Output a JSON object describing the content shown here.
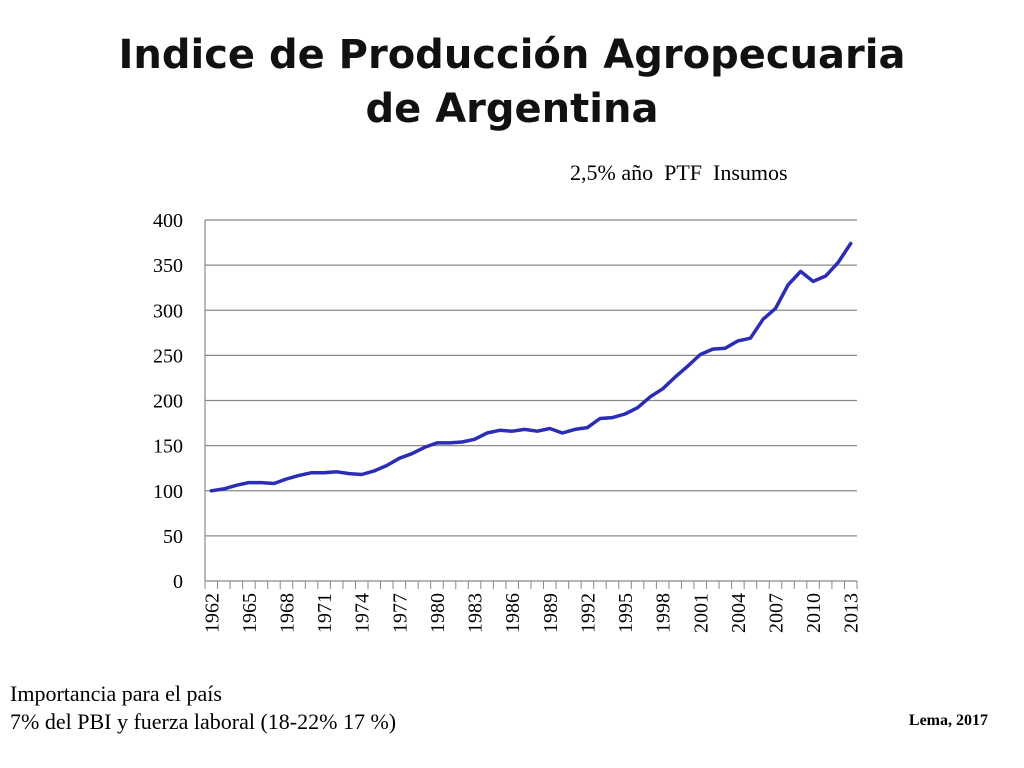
{
  "slide": {
    "title_line1": "Indice de Producción Agropecuaria",
    "title_line2": "de Argentina",
    "annotation": "2,5% año  PTF  Insumos",
    "note_line1": "Importancia para el país",
    "note_line2": "7% del PBI y fuerza laboral (18-22% 17 %)",
    "credit": "Lema, 2017"
  },
  "chart_data": {
    "type": "line",
    "title": "",
    "xlabel": "",
    "ylabel": "",
    "ylim": [
      0,
      400
    ],
    "y_ticks": [
      0,
      50,
      100,
      150,
      200,
      250,
      300,
      350,
      400
    ],
    "x_tick_labels": [
      "1962",
      "1965",
      "1968",
      "1971",
      "1974",
      "1977",
      "1980",
      "1983",
      "1986",
      "1989",
      "1992",
      "1995",
      "1998",
      "2001",
      "2004",
      "2007",
      "2010",
      "2013"
    ],
    "grid": "horizontal",
    "legend": "none",
    "series": [
      {
        "color": "#2b2db5",
        "x": [
          1962,
          1963,
          1964,
          1965,
          1966,
          1967,
          1968,
          1969,
          1970,
          1971,
          1972,
          1973,
          1974,
          1975,
          1976,
          1977,
          1978,
          1979,
          1980,
          1981,
          1982,
          1983,
          1984,
          1985,
          1986,
          1987,
          1988,
          1989,
          1990,
          1991,
          1992,
          1993,
          1994,
          1995,
          1996,
          1997,
          1998,
          1999,
          2000,
          2001,
          2002,
          2003,
          2004,
          2005,
          2006,
          2007,
          2008,
          2009,
          2010,
          2011,
          2012,
          2013
        ],
        "y": [
          100,
          102,
          106,
          109,
          109,
          108,
          113,
          117,
          120,
          120,
          121,
          119,
          118,
          122,
          128,
          136,
          141,
          148,
          153,
          153,
          154,
          157,
          164,
          167,
          166,
          168,
          166,
          169,
          164,
          168,
          170,
          180,
          181,
          185,
          192,
          204,
          213,
          226,
          238,
          251,
          257,
          258,
          266,
          269,
          290,
          302,
          328,
          343,
          332,
          338,
          353,
          374
        ]
      }
    ]
  }
}
